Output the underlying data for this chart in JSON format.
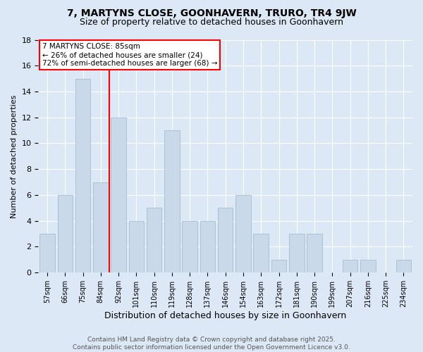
{
  "title": "7, MARTYNS CLOSE, GOONHAVERN, TRURO, TR4 9JW",
  "subtitle": "Size of property relative to detached houses in Goonhavern",
  "xlabel": "Distribution of detached houses by size in Goonhavern",
  "ylabel": "Number of detached properties",
  "categories": [
    "57sqm",
    "66sqm",
    "75sqm",
    "84sqm",
    "92sqm",
    "101sqm",
    "110sqm",
    "119sqm",
    "128sqm",
    "137sqm",
    "146sqm",
    "154sqm",
    "163sqm",
    "172sqm",
    "181sqm",
    "190sqm",
    "199sqm",
    "207sqm",
    "216sqm",
    "225sqm",
    "234sqm"
  ],
  "values": [
    3,
    6,
    15,
    7,
    12,
    4,
    5,
    11,
    4,
    4,
    5,
    6,
    3,
    1,
    3,
    3,
    0,
    1,
    1,
    0,
    1
  ],
  "bar_color": "#c9d9ea",
  "bar_edge_color": "#a8bdd0",
  "red_line_x": 3.5,
  "annotation_text": "7 MARTYNS CLOSE: 85sqm\n← 26% of detached houses are smaller (24)\n72% of semi-detached houses are larger (68) →",
  "annotation_box_color": "white",
  "annotation_box_edge": "red",
  "ylim": [
    0,
    18
  ],
  "yticks": [
    0,
    2,
    4,
    6,
    8,
    10,
    12,
    14,
    16,
    18
  ],
  "background_color": "#dce8f5",
  "footnote": "Contains HM Land Registry data © Crown copyright and database right 2025.\nContains public sector information licensed under the Open Government Licence v3.0.",
  "title_fontsize": 10,
  "subtitle_fontsize": 9,
  "annotation_fontsize": 7.5,
  "footnote_fontsize": 6.5,
  "ylabel_fontsize": 8,
  "xlabel_fontsize": 9
}
